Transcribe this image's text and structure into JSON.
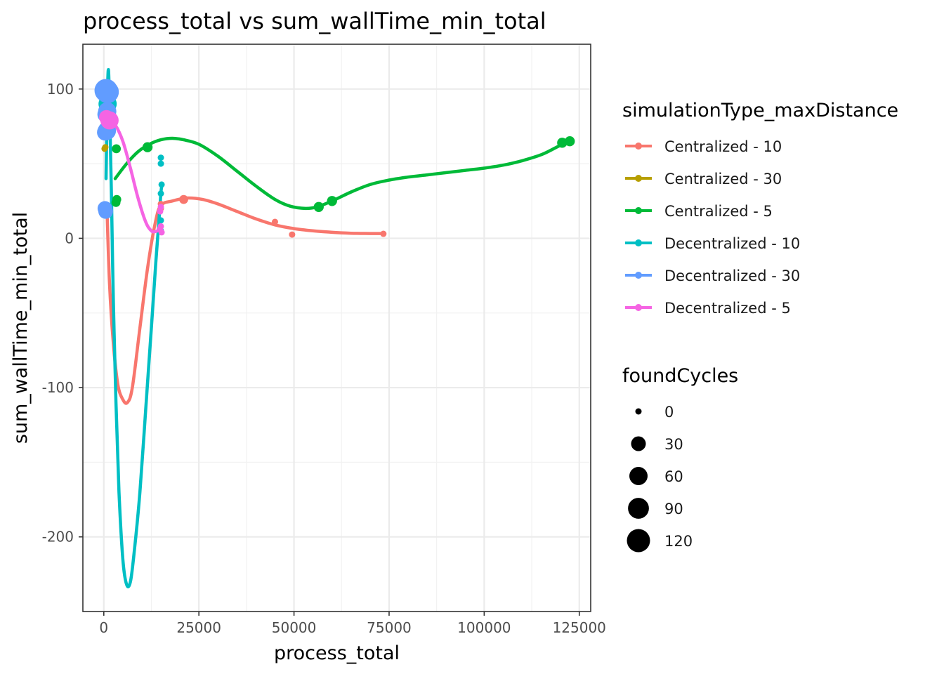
{
  "chart_data": {
    "type": "scatter",
    "title": "process_total  vs  sum_wallTime_min_total",
    "xlabel": "process_total",
    "ylabel": "sum_wallTime_min_total",
    "xlim": [
      -5500,
      128000
    ],
    "ylim": [
      -250,
      130
    ],
    "x_ticks": [
      0,
      25000,
      50000,
      75000,
      100000,
      125000
    ],
    "x_tick_labels": [
      "0",
      "25000",
      "50000",
      "75000",
      "100000",
      "125000"
    ],
    "y_ticks": [
      -200,
      -100,
      0,
      100
    ],
    "y_tick_labels": [
      "-200",
      "-100",
      "0",
      "100"
    ],
    "grid": true,
    "color_legend": {
      "title": "simulationType_maxDistance",
      "position": "right",
      "entries": [
        {
          "label": "Centralized - 10",
          "color": "#F8766D"
        },
        {
          "label": "Centralized - 30",
          "color": "#B79F00"
        },
        {
          "label": "Centralized - 5",
          "color": "#00BA38"
        },
        {
          "label": "Decentralized - 10",
          "color": "#00BFC4"
        },
        {
          "label": "Decentralized - 30",
          "color": "#619CFF"
        },
        {
          "label": "Decentralized - 5",
          "color": "#F564E3"
        }
      ]
    },
    "size_legend": {
      "title": "foundCycles",
      "position": "right",
      "entries": [
        {
          "label": "0",
          "value": 0
        },
        {
          "label": "30",
          "value": 30
        },
        {
          "label": "60",
          "value": 60
        },
        {
          "label": "90",
          "value": 90
        },
        {
          "label": "120",
          "value": 120
        }
      ]
    },
    "series": [
      {
        "name": "Centralized - 10",
        "color": "#F8766D",
        "points": [
          [
            15000,
            23,
            0
          ],
          [
            21000,
            26,
            3
          ],
          [
            45000,
            11,
            0
          ],
          [
            49500,
            2.5,
            0
          ],
          [
            73500,
            3,
            0
          ],
          [
            15000,
            20,
            0
          ]
        ],
        "smooth": [
          [
            800,
            22
          ],
          [
            1500,
            -30
          ],
          [
            2500,
            -70
          ],
          [
            3700,
            -98
          ],
          [
            5000,
            -108
          ],
          [
            6200,
            -110
          ],
          [
            7500,
            -100
          ],
          [
            9500,
            -60
          ],
          [
            11500,
            -20
          ],
          [
            13500,
            10
          ],
          [
            15000,
            22
          ],
          [
            18000,
            25
          ],
          [
            22000,
            27
          ],
          [
            26000,
            26
          ],
          [
            30000,
            23
          ],
          [
            35000,
            18
          ],
          [
            40000,
            13
          ],
          [
            45000,
            9
          ],
          [
            50000,
            6.5
          ],
          [
            55000,
            5
          ],
          [
            60000,
            4
          ],
          [
            65000,
            3.4
          ],
          [
            70000,
            3.2
          ],
          [
            73500,
            3.2
          ]
        ]
      },
      {
        "name": "Centralized - 30",
        "color": "#B79F00",
        "points": [
          [
            200,
            60,
            0
          ],
          [
            400,
            61,
            0
          ]
        ],
        "smooth": []
      },
      {
        "name": "Centralized - 5",
        "color": "#00BA38",
        "points": [
          [
            3300,
            60,
            3
          ],
          [
            3200,
            24,
            3
          ],
          [
            3400,
            26,
            3
          ],
          [
            11500,
            61,
            6
          ],
          [
            56500,
            21,
            6
          ],
          [
            60000,
            25,
            6
          ],
          [
            120500,
            64,
            6
          ],
          [
            122500,
            65,
            6
          ]
        ],
        "smooth": [
          [
            3000,
            40
          ],
          [
            6000,
            50
          ],
          [
            9000,
            58
          ],
          [
            12000,
            63
          ],
          [
            15000,
            66
          ],
          [
            18000,
            67
          ],
          [
            21000,
            66
          ],
          [
            25000,
            63
          ],
          [
            30000,
            55
          ],
          [
            35000,
            45
          ],
          [
            40000,
            35
          ],
          [
            45000,
            26
          ],
          [
            49000,
            21.5
          ],
          [
            53000,
            20
          ],
          [
            56000,
            21
          ],
          [
            60000,
            25
          ],
          [
            65000,
            31
          ],
          [
            70000,
            36
          ],
          [
            75000,
            39
          ],
          [
            80000,
            41
          ],
          [
            85000,
            42.5
          ],
          [
            90000,
            44
          ],
          [
            95000,
            45.5
          ],
          [
            100000,
            47
          ],
          [
            105000,
            49
          ],
          [
            110000,
            52
          ],
          [
            115000,
            56
          ],
          [
            119000,
            61
          ],
          [
            122500,
            65.5
          ]
        ]
      },
      {
        "name": "Decentralized - 10",
        "color": "#00BFC4",
        "points": [
          [
            15000,
            54,
            0
          ],
          [
            15000,
            50,
            0
          ],
          [
            15200,
            36,
            0
          ],
          [
            15000,
            12,
            0
          ],
          [
            15000,
            5,
            0
          ],
          [
            15000,
            30,
            0
          ],
          [
            1000,
            100,
            30
          ],
          [
            1000,
            90,
            60
          ]
        ],
        "smooth": [
          [
            600,
            40
          ],
          [
            900,
            90
          ],
          [
            1200,
            113
          ],
          [
            1500,
            90
          ],
          [
            2000,
            30
          ],
          [
            2500,
            -40
          ],
          [
            3200,
            -110
          ],
          [
            4000,
            -170
          ],
          [
            5000,
            -215
          ],
          [
            6000,
            -232
          ],
          [
            7000,
            -230
          ],
          [
            8000,
            -210
          ],
          [
            9500,
            -170
          ],
          [
            11000,
            -115
          ],
          [
            12500,
            -60
          ],
          [
            13700,
            -15
          ],
          [
            14500,
            12
          ],
          [
            15000,
            30
          ],
          [
            15300,
            36
          ]
        ]
      },
      {
        "name": "Decentralized - 30",
        "color": "#619CFF",
        "points": [
          [
            600,
            99,
            120
          ],
          [
            1000,
            98,
            110
          ],
          [
            900,
            85,
            60
          ],
          [
            500,
            83,
            45
          ],
          [
            800,
            72,
            60
          ],
          [
            400,
            71,
            45
          ],
          [
            300,
            20,
            30
          ],
          [
            500,
            18,
            30
          ]
        ],
        "smooth": []
      },
      {
        "name": "Decentralized - 5",
        "color": "#F564E3",
        "points": [
          [
            1500,
            79,
            60
          ],
          [
            700,
            81,
            30
          ],
          [
            14800,
            18,
            0
          ],
          [
            15000,
            8,
            0
          ],
          [
            14700,
            6,
            0
          ],
          [
            15200,
            4,
            0
          ],
          [
            15000,
            21,
            0
          ]
        ],
        "smooth": [
          [
            0,
            79
          ],
          [
            1500,
            79
          ],
          [
            3000,
            76
          ],
          [
            5000,
            65
          ],
          [
            7000,
            47
          ],
          [
            9000,
            27
          ],
          [
            11000,
            11
          ],
          [
            12500,
            5
          ],
          [
            13500,
            4.5
          ],
          [
            14500,
            5.5
          ],
          [
            15200,
            7
          ]
        ]
      }
    ]
  }
}
